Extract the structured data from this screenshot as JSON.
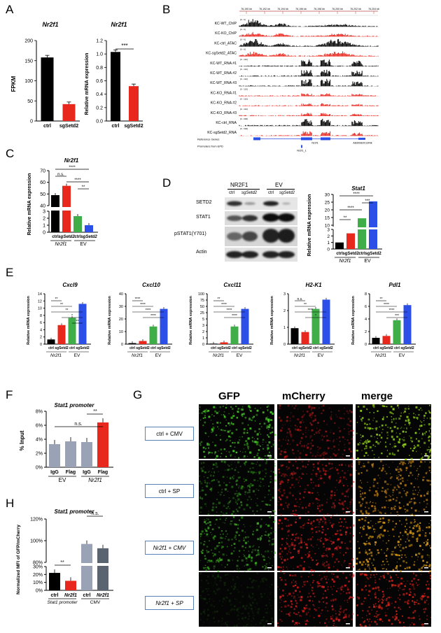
{
  "panels": {
    "A": "A",
    "B": "B",
    "C": "C",
    "D": "D",
    "E": "E",
    "F": "F",
    "G": "G",
    "H": "H"
  },
  "panelA": {
    "fpkm": {
      "title": "Nr2f1",
      "ylabel": "FPKM",
      "yticks": [
        "0",
        "50",
        "100",
        "150",
        "200"
      ],
      "categories": [
        "ctrl",
        "sgSetd2"
      ],
      "values": [
        158,
        42
      ],
      "colors": [
        "#000000",
        "#e8271d"
      ]
    },
    "rna": {
      "title": "Nr2f1",
      "ylabel": "Relative mRNA expression",
      "yticks": [
        "0.0",
        "0.2",
        "0.4",
        "0.6",
        "0.8",
        "1.0",
        "1.2"
      ],
      "categories": [
        "ctrl",
        "sgSetd2"
      ],
      "values": [
        1.03,
        0.52
      ],
      "colors": [
        "#000000",
        "#e8271d"
      ],
      "sig": "***"
    }
  },
  "panelB": {
    "coords": [
      "76,190 kb",
      "76,192 kb",
      "76,194 kb",
      "76,196 kb",
      "76,198 kb",
      "76,200 kb",
      "76,202 kb",
      "76,204 kb"
    ],
    "tracks": [
      {
        "label": "KC-WT_ChIP",
        "range": "[0 - 6]",
        "color": "#000000"
      },
      {
        "label": "KC-KO_ChIP",
        "range": "[0 - 6]",
        "color": "#e8271d"
      },
      {
        "label": "KC-ctrl_ATAC",
        "range": "[0 - 6]",
        "color": "#000000"
      },
      {
        "label": "KC-sgSetd2_ATAC",
        "range": "[0 - 6]",
        "color": "#e8271d"
      },
      {
        "label": "KC-WT_RNA #1",
        "range": "[0 - 110]",
        "color": "#000000"
      },
      {
        "label": "KC-WT_RNA #2",
        "range": "[0 - 110]",
        "color": "#000000"
      },
      {
        "label": "KC-WT_RNA #3",
        "range": "[0 - 110]",
        "color": "#000000"
      },
      {
        "label": "KC-KO_RNA #1",
        "range": "[0 - 110]",
        "color": "#e8271d"
      },
      {
        "label": "KC-KO_RNA #2",
        "range": "[0 - 110]",
        "color": "#e8271d"
      },
      {
        "label": "KC-KO_RNA #3",
        "range": "[0 - 110]",
        "color": "#e8271d"
      },
      {
        "label": "KC-ctrl_RNA",
        "range": "[0 - 600]",
        "color": "#000000"
      },
      {
        "label": "KC-sgSetd2_RNA",
        "range": "[0 - 600]",
        "color": "#e8271d"
      }
    ],
    "ref_genes": "Reference Genes",
    "promoters": "Promoters from EPD",
    "gene1": "Nr2f1",
    "gene2": "Nr2f1_1",
    "gene3": "A830082K12Rik"
  },
  "panelC": {
    "title": "Nr2f1",
    "ylabel": "Relative mRNA expression",
    "yticks_low": [
      "0",
      "1",
      "2",
      "3"
    ],
    "yticks_high": [
      "40",
      "50",
      "60",
      "70"
    ],
    "categories": [
      "ctrl",
      "sgSetd2",
      "ctrl",
      "sgSetd2"
    ],
    "values": [
      49,
      57,
      2.3,
      1.0
    ],
    "colors": [
      "#000000",
      "#e8271d",
      "#3fae49",
      "#2c4fe8"
    ],
    "groups": [
      "Nr2f1",
      "EV"
    ],
    "sigs": [
      "****",
      "n.s.",
      "****",
      "**"
    ]
  },
  "panelD": {
    "col_groups": [
      "NR2F1",
      "EV"
    ],
    "lanes": [
      "ctrl",
      "sgSetd2",
      "ctrl",
      "sgSetd2"
    ],
    "rows": [
      "SETD2",
      "STAT1",
      "pSTAT1(Y701)",
      "Actin"
    ],
    "stat1": {
      "title": "Stat1",
      "ylabel": "Relative mRNA expression",
      "yticks_low": [
        "0",
        "1",
        "2",
        "3"
      ],
      "yticks_high": [
        "10",
        "15",
        "20",
        "25",
        "30"
      ],
      "categories": [
        "ctrl",
        "sgSetd2",
        "ctrl",
        "sgSetd2"
      ],
      "values": [
        1.0,
        2.4,
        14.5,
        25.5
      ],
      "colors": [
        "#000000",
        "#e8271d",
        "#3fae49",
        "#2c4fe8"
      ],
      "groups": [
        "Nr2f1",
        "EV"
      ],
      "sigs": [
        "**",
        "****",
        "****",
        "***"
      ]
    }
  },
  "panelE": {
    "ylabel": "Relative mRNA expression",
    "groups": [
      "Nr2f1",
      "EV"
    ],
    "categories": [
      "ctrl",
      "sgSetd2",
      "ctrl",
      "sgSetd2"
    ],
    "colors": [
      "#000000",
      "#e8271d",
      "#3fae49",
      "#2c4fe8"
    ],
    "charts": [
      {
        "title": "Cxcl9",
        "yticks": [
          "0",
          "2",
          "4",
          "6",
          "8",
          "10",
          "12",
          "14"
        ],
        "ymax": 14,
        "values": [
          1.3,
          5.3,
          7.3,
          11.2
        ],
        "sigs": [
          "**",
          "**",
          "**",
          "*",
          "**"
        ]
      },
      {
        "title": "Cxcl10",
        "yticks": [
          "0",
          "10",
          "20",
          "30",
          "40"
        ],
        "ymax": 40,
        "values": [
          0.8,
          2.5,
          14,
          28
        ],
        "sigs": [
          "****",
          "****",
          "****",
          "****"
        ]
      },
      {
        "title": "Cxcl11",
        "yticks": [
          "0",
          "1",
          "2",
          "3",
          "5",
          "25",
          "50",
          "75",
          "100"
        ],
        "ymax": 100,
        "values": [
          1.0,
          3.5,
          35,
          70
        ],
        "sigs": [
          "**",
          "****",
          "****",
          "****"
        ]
      },
      {
        "title": "H2-K1",
        "yticks": [
          "0",
          "1",
          "2",
          "3"
        ],
        "ymax": 3,
        "values": [
          0.95,
          0.72,
          2.1,
          2.65
        ],
        "sigs": [
          "n.s.",
          "**",
          "****",
          "*"
        ]
      },
      {
        "title": "Pdl1",
        "yticks": [
          "0",
          "2",
          "4",
          "6",
          "8"
        ],
        "ymax": 8,
        "values": [
          1.0,
          1.3,
          3.8,
          6.2
        ],
        "sigs": [
          "**",
          "****",
          "****",
          "***"
        ]
      }
    ]
  },
  "panelF": {
    "title": "Stat1 promoter",
    "ylabel": "% Input",
    "yticks": [
      "0%",
      "2%",
      "4%",
      "6%",
      "8%"
    ],
    "categories": [
      "IgG",
      "Flag",
      "IgG",
      "Flag"
    ],
    "values": [
      3.3,
      3.7,
      3.6,
      6.4
    ],
    "colors": [
      "#9aa3b5",
      "#9aa3b5",
      "#9aa3b5",
      "#e8271d"
    ],
    "groups": [
      "EV",
      "Nr2f1"
    ],
    "sigs": [
      "n.s.",
      "**"
    ]
  },
  "panelG": {
    "headers": [
      "GFP",
      "mCherry",
      "merge"
    ],
    "header_colors": [
      "#3fce2a",
      "#e8271d",
      "#e5c24a"
    ],
    "conditions": [
      "ctrl + CMV",
      "ctrl + SP",
      "Nr2f1 + CMV",
      "Nr2f1 + SP"
    ]
  },
  "panelH": {
    "title": "Stat1 promoter",
    "ylabel": "Normalized MFI of GFP/mCherry",
    "yticks_low": [
      "0%",
      "10%",
      "20%",
      "30%"
    ],
    "yticks_high": [
      "80%",
      "100%",
      "120%"
    ],
    "categories": [
      "ctrl",
      "Nr2f1",
      "ctrl",
      "Nr2f1"
    ],
    "values": [
      22,
      12,
      97,
      93
    ],
    "colors": [
      "#000000",
      "#e8271d",
      "#9aa3b5",
      "#5a6470"
    ],
    "groups": [
      "Stat1 promoter",
      "CMV"
    ],
    "sigs": [
      "**",
      "n.s."
    ]
  }
}
